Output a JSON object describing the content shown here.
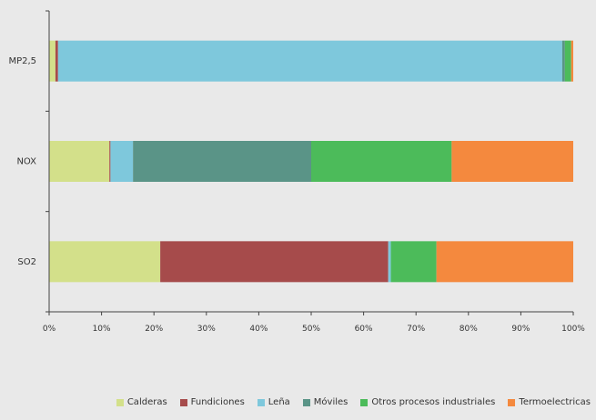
{
  "chart_data": {
    "type": "bar",
    "orientation": "horizontal",
    "stacked": "percent",
    "categories": [
      "MP2,5",
      "NOX",
      "SO2"
    ],
    "x_ticks": [
      "0%",
      "10%",
      "20%",
      "30%",
      "40%",
      "50%",
      "60%",
      "70%",
      "80%",
      "90%",
      "100%"
    ],
    "xlim": [
      0,
      100
    ],
    "grid": false,
    "legend_position": "bottom-right",
    "series": [
      {
        "name": "Calderas",
        "color": "#d3e08a",
        "values": [
          1.2,
          11.5,
          21.2
        ]
      },
      {
        "name": "Fundiciones",
        "color": "#a64b4b",
        "values": [
          0.5,
          0.2,
          43.5
        ]
      },
      {
        "name": "Leña",
        "color": "#7ec8dc",
        "values": [
          96.2,
          4.3,
          0.5
        ]
      },
      {
        "name": "Móviles",
        "color": "#5a9487",
        "values": [
          0.5,
          34.0,
          0.0
        ]
      },
      {
        "name": "Otros procesos industriales",
        "color": "#4cbb5a",
        "values": [
          1.2,
          26.8,
          8.7
        ]
      },
      {
        "name": "Termoelectricas",
        "color": "#f4893e",
        "values": [
          0.4,
          23.2,
          26.1
        ]
      }
    ]
  }
}
